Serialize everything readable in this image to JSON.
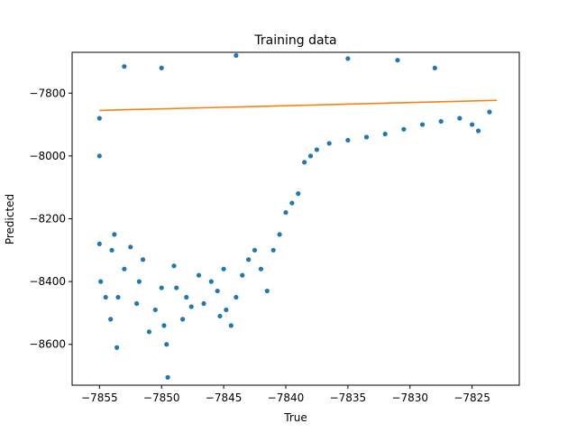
{
  "chart_data": {
    "type": "scatter",
    "title": "Training data",
    "xlabel": "True",
    "ylabel": "Predicted",
    "xlim": [
      -7857.2,
      -7821.2
    ],
    "ylim": [
      -8730,
      -7670
    ],
    "xticks": [
      -7855,
      -7850,
      -7845,
      -7840,
      -7835,
      -7830,
      -7825
    ],
    "xtick_labels": [
      "−7855",
      "−7850",
      "−7845",
      "−7840",
      "−7835",
      "−7830",
      "−7825"
    ],
    "yticks": [
      -7800,
      -8000,
      -8200,
      -8400,
      -8600
    ],
    "ytick_labels": [
      "−7800",
      "−8000",
      "−8200",
      "−8400",
      "−8600"
    ],
    "grid": false,
    "series": [
      {
        "kind": "scatter",
        "color": "#1f77b4",
        "values": [
          [
            -7855.0,
            -7880
          ],
          [
            -7855.0,
            -8000
          ],
          [
            -7855.0,
            -8280
          ],
          [
            -7854.9,
            -8400
          ],
          [
            -7854.5,
            -8450
          ],
          [
            -7854.1,
            -8520
          ],
          [
            -7854.0,
            -8300
          ],
          [
            -7853.8,
            -8250
          ],
          [
            -7853.6,
            -8610
          ],
          [
            -7853.5,
            -8450
          ],
          [
            -7853.0,
            -8360
          ],
          [
            -7852.5,
            -8290
          ],
          [
            -7852.0,
            -8470
          ],
          [
            -7851.8,
            -8400
          ],
          [
            -7851.5,
            -8330
          ],
          [
            -7851.0,
            -8560
          ],
          [
            -7850.5,
            -8490
          ],
          [
            -7850.0,
            -8420
          ],
          [
            -7849.8,
            -8540
          ],
          [
            -7849.6,
            -8600
          ],
          [
            -7849.5,
            -8705
          ],
          [
            -7849.0,
            -8350
          ],
          [
            -7848.8,
            -8420
          ],
          [
            -7848.3,
            -8520
          ],
          [
            -7848.0,
            -8450
          ],
          [
            -7847.6,
            -8480
          ],
          [
            -7847.0,
            -8380
          ],
          [
            -7846.6,
            -8470
          ],
          [
            -7846.0,
            -8400
          ],
          [
            -7845.5,
            -8430
          ],
          [
            -7845.3,
            -8510
          ],
          [
            -7845.0,
            -8360
          ],
          [
            -7844.8,
            -8490
          ],
          [
            -7844.4,
            -8540
          ],
          [
            -7844.0,
            -8450
          ],
          [
            -7843.5,
            -8380
          ],
          [
            -7843.0,
            -8330
          ],
          [
            -7842.5,
            -8300
          ],
          [
            -7842.0,
            -8360
          ],
          [
            -7841.5,
            -8430
          ],
          [
            -7841.0,
            -8300
          ],
          [
            -7840.5,
            -8250
          ],
          [
            -7840.0,
            -8180
          ],
          [
            -7839.5,
            -8150
          ],
          [
            -7839.0,
            -8120
          ],
          [
            -7838.5,
            -8020
          ],
          [
            -7838.0,
            -8000
          ],
          [
            -7837.5,
            -7980
          ],
          [
            -7836.5,
            -7960
          ],
          [
            -7835.0,
            -7950
          ],
          [
            -7833.5,
            -7940
          ],
          [
            -7832.0,
            -7930
          ],
          [
            -7830.5,
            -7915
          ],
          [
            -7829.0,
            -7900
          ],
          [
            -7827.5,
            -7890
          ],
          [
            -7826.0,
            -7880
          ],
          [
            -7825.0,
            -7900
          ],
          [
            -7824.5,
            -7920
          ],
          [
            -7823.6,
            -7860
          ],
          [
            -7844.0,
            -7680
          ],
          [
            -7835.0,
            -7690
          ],
          [
            -7831.0,
            -7695
          ],
          [
            -7828.0,
            -7720
          ],
          [
            -7850.0,
            -7720
          ],
          [
            -7853.0,
            -7715
          ]
        ]
      }
    ],
    "fit_line": {
      "kind": "line",
      "color": "#ff7f0e",
      "points": [
        [
          -7855.0,
          -7855
        ],
        [
          -7823.0,
          -7823
        ]
      ]
    }
  }
}
